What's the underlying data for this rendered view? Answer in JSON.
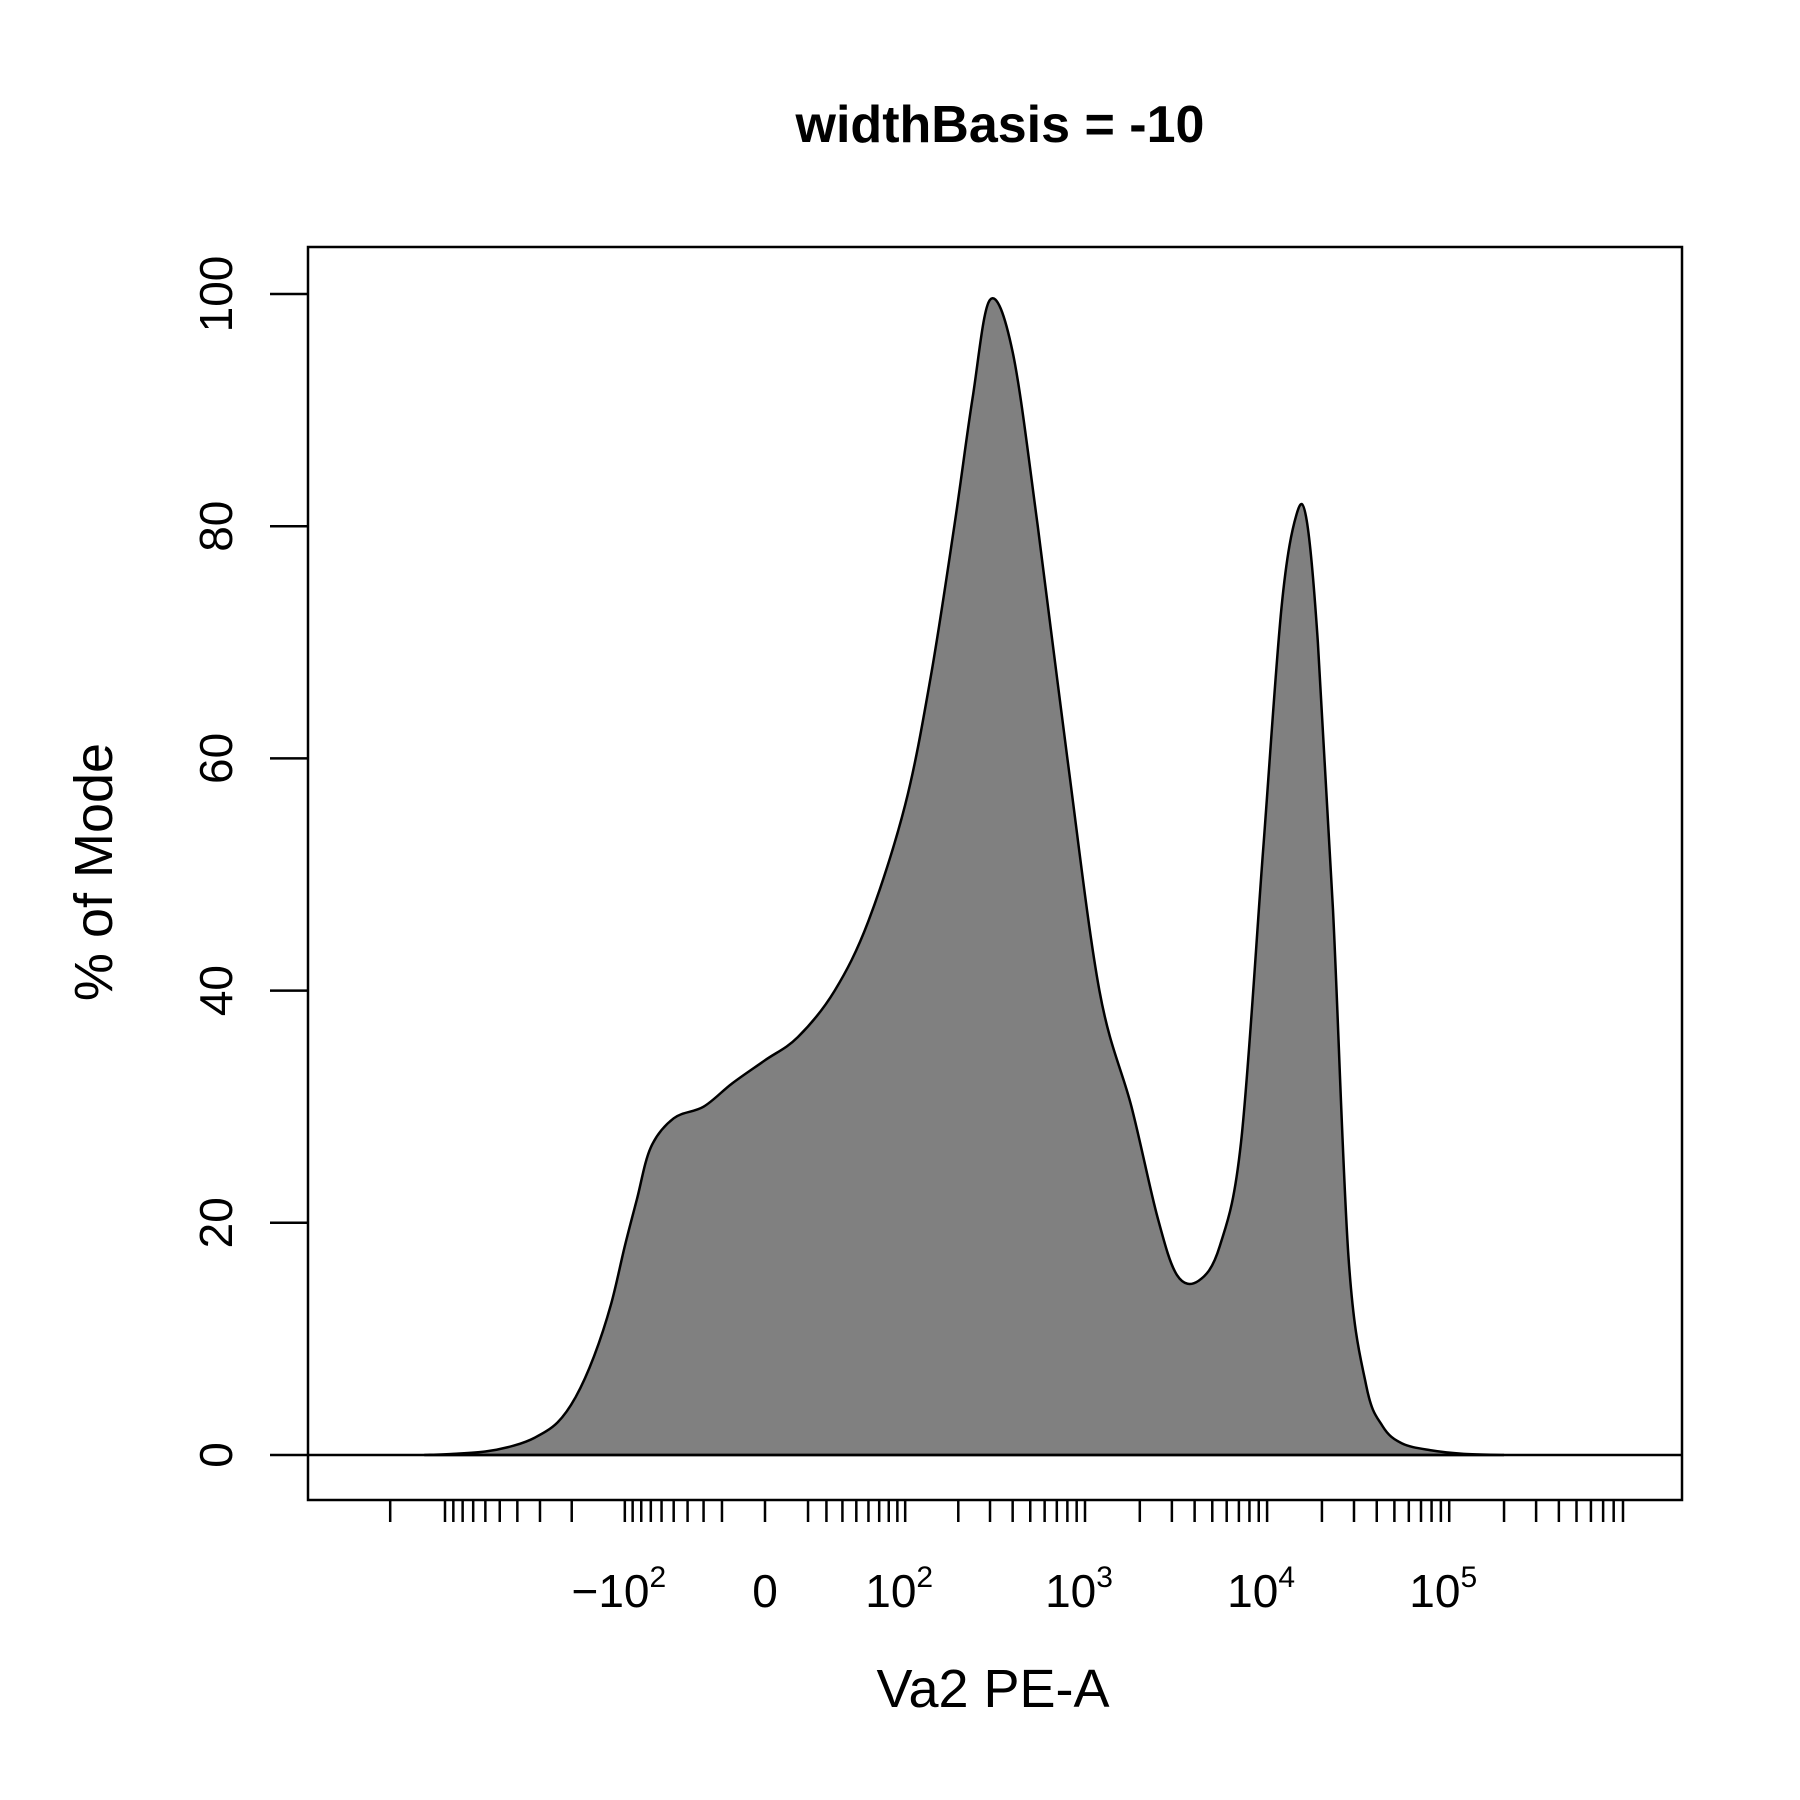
{
  "chart_data": {
    "type": "area",
    "title": "widthBasis = -10",
    "xlabel": "Va2 PE-A",
    "ylabel": "% of Mode",
    "ylim": [
      0,
      100
    ],
    "yticks": [
      0,
      20,
      40,
      60,
      80,
      100
    ],
    "xscale": "biexponential",
    "xtick_labels": [
      {
        "base": "−10",
        "exp": "2",
        "value": -100
      },
      {
        "base": "0",
        "exp": "",
        "value": 0
      },
      {
        "base": "10",
        "exp": "2",
        "value": 100
      },
      {
        "base": "10",
        "exp": "3",
        "value": 1000
      },
      {
        "base": "10",
        "exp": "4",
        "value": 10000
      },
      {
        "base": "10",
        "exp": "5",
        "value": 100000
      }
    ],
    "fill_color": "#808080",
    "x": [
      -1300,
      -900,
      -600,
      -420,
      -320,
      -240,
      -190,
      -150,
      -120,
      -100,
      -85,
      -70,
      -50,
      -30,
      -15,
      0,
      15,
      35,
      60,
      100,
      140,
      190,
      240,
      300,
      400,
      550,
      800,
      1200,
      1800,
      2500,
      3200,
      4200,
      5500,
      7200,
      9500,
      12000,
      14500,
      16500,
      19000,
      23000,
      28000,
      35000,
      43000,
      55000,
      80000,
      120000,
      200000
    ],
    "y": [
      0,
      0.1,
      0.3,
      0.8,
      1.5,
      2.8,
      5,
      8.5,
      13,
      18,
      22,
      26.5,
      29,
      30,
      32,
      34,
      36,
      40,
      46,
      56,
      67,
      80,
      91,
      99.5,
      95,
      80,
      60,
      40,
      30,
      20.5,
      15.5,
      15,
      18,
      27,
      52,
      73,
      81,
      80.5,
      70,
      47,
      17,
      6,
      2.5,
      1,
      0.4,
      0.1,
      0
    ]
  }
}
